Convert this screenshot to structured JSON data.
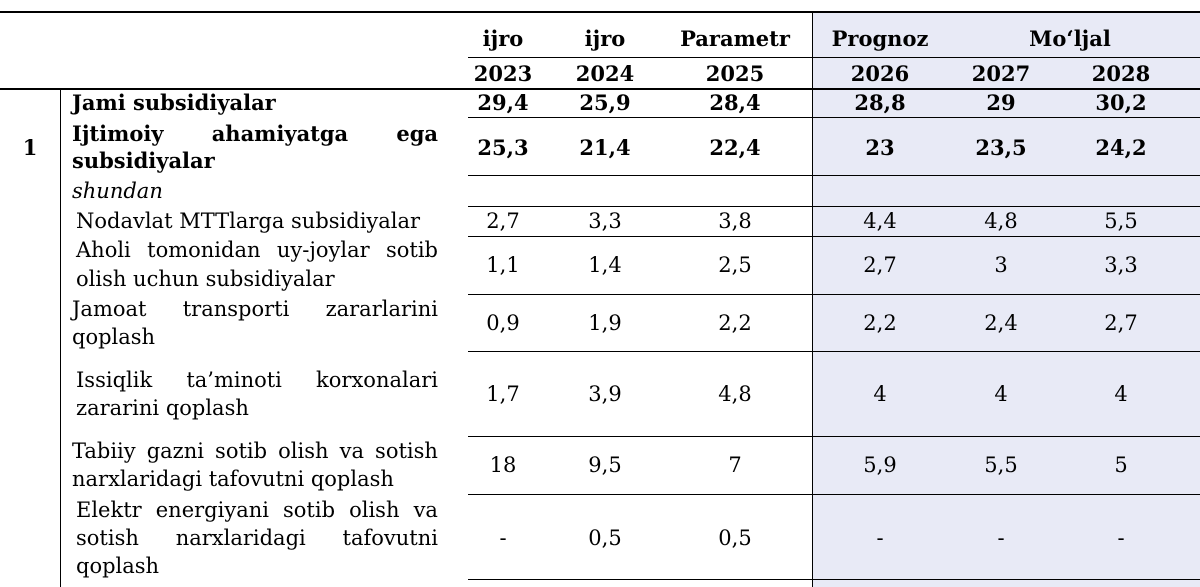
{
  "header": {
    "top": [
      "ijro",
      "ijro",
      "Parametr",
      "Prognoz",
      "Mo‘ljal"
    ],
    "years": [
      "2023",
      "2024",
      "2025",
      "2026",
      "2027",
      "2028"
    ]
  },
  "rows": [
    {
      "label": "Jami subsidiyalar",
      "values": [
        "29,4",
        "25,9",
        "28,4",
        "28,8",
        "29",
        "30,2"
      ]
    },
    {
      "label_line1": [
        "Ijtimoiy",
        "ahamiyatga",
        "ega"
      ],
      "label_line2": "subsidiyalar",
      "values": [
        "25,3",
        "21,4",
        "22,4",
        "23",
        "23,5",
        "24,2"
      ]
    },
    {
      "label": "shundan"
    },
    {
      "label": "Nodavlat MTTlarga subsidiyalar",
      "values": [
        "2,7",
        "3,3",
        "3,8",
        "4,4",
        "4,8",
        "5,5"
      ]
    },
    {
      "label_line1": [
        "Aholi",
        "tomonidan",
        "uy-joylar",
        "sotib"
      ],
      "label_line2": "olish uchun subsidiyalar",
      "values": [
        "1,1",
        "1,4",
        "2,5",
        "2,7",
        "3",
        "3,3"
      ]
    },
    {
      "label_line1": [
        "Jamoat",
        "transporti",
        "zararlarini"
      ],
      "label_line2": "qoplash",
      "values": [
        "0,9",
        "1,9",
        "2,2",
        "2,2",
        "2,4",
        "2,7"
      ]
    },
    {
      "label_line1": [
        "Issiqlik",
        "ta’minoti",
        "korxonalari"
      ],
      "label_line2": "zararini qoplash",
      "values": [
        "1,7",
        "3,9",
        "4,8",
        "4",
        "4",
        "4"
      ]
    },
    {
      "label_line1": [
        "Tabiiy",
        "gazni",
        "sotib",
        "olish",
        "va",
        "sotish"
      ],
      "label_line2": "narxlaridagi tafovutni qoplash",
      "values": [
        "18",
        "9,5",
        "7",
        "5,9",
        "5,5",
        "5"
      ]
    },
    {
      "label_line1": [
        "Elektr",
        "energiyani",
        "sotib",
        "olish",
        "va"
      ],
      "label_line2": [
        "sotish",
        "narxlaridagi",
        "tafovutni"
      ],
      "label_line3": "qoplash",
      "values": [
        "-",
        "0,5",
        "0,5",
        "-",
        "-",
        "-"
      ]
    }
  ],
  "row_number": "1"
}
